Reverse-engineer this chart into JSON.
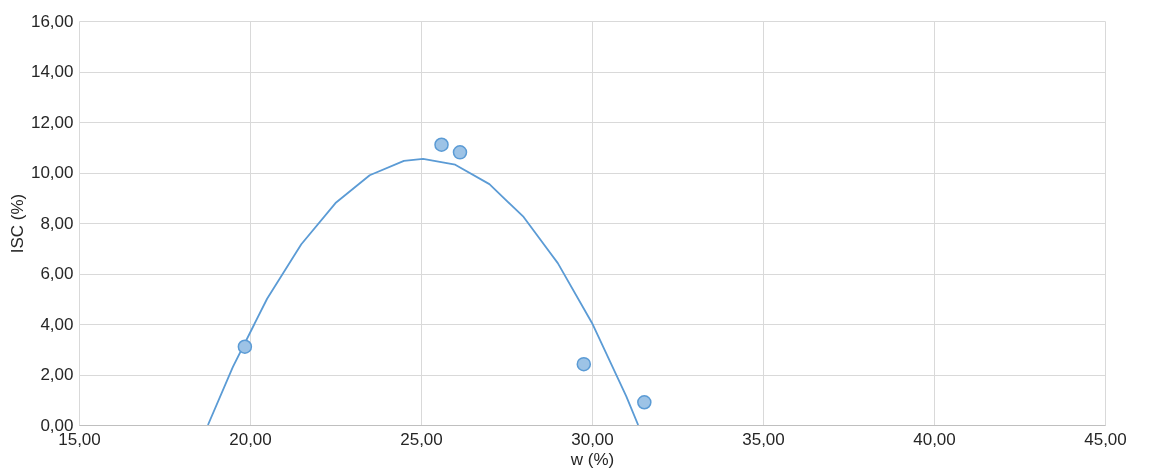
{
  "chart_data": {
    "type": "scatter",
    "xlabel": "w (%)",
    "ylabel": "ISC (%)",
    "xlim": [
      15,
      45
    ],
    "ylim": [
      0,
      16
    ],
    "xticks": [
      {
        "value": 15,
        "label": "15,00"
      },
      {
        "value": 20,
        "label": "20,00"
      },
      {
        "value": 25,
        "label": "25,00"
      },
      {
        "value": 30,
        "label": "30,00"
      },
      {
        "value": 35,
        "label": "35,00"
      },
      {
        "value": 40,
        "label": "40,00"
      },
      {
        "value": 45,
        "label": "45,00"
      }
    ],
    "yticks": [
      {
        "value": 0,
        "label": "0,00"
      },
      {
        "value": 2,
        "label": "2,00"
      },
      {
        "value": 4,
        "label": "4,00"
      },
      {
        "value": 6,
        "label": "6,00"
      },
      {
        "value": 8,
        "label": "8,00"
      },
      {
        "value": 10,
        "label": "10,00"
      },
      {
        "value": 12,
        "label": "12,00"
      },
      {
        "value": 14,
        "label": "14,00"
      },
      {
        "value": 16,
        "label": "16,00"
      }
    ],
    "grid": true,
    "marker": "circle",
    "series": [
      {
        "color": "#9dc3e6",
        "x": [
          19.85,
          25.6,
          26.14,
          29.76,
          31.53
        ],
        "values": [
          3.1,
          11.1,
          10.8,
          2.41,
          0.9
        ]
      },
      {
        "type": "line",
        "marker": "none",
        "color": "#5b9bd5",
        "x": [
          18.77,
          19.5,
          20.5,
          21.5,
          22.5,
          23.5,
          24.5,
          25.06,
          26,
          27,
          28,
          29,
          30,
          31,
          31.35
        ],
        "values": [
          0,
          2.3,
          5.0,
          7.16,
          8.79,
          9.89,
          10.46,
          10.54,
          10.31,
          9.54,
          8.24,
          6.41,
          4.04,
          1.14,
          0
        ]
      }
    ]
  }
}
